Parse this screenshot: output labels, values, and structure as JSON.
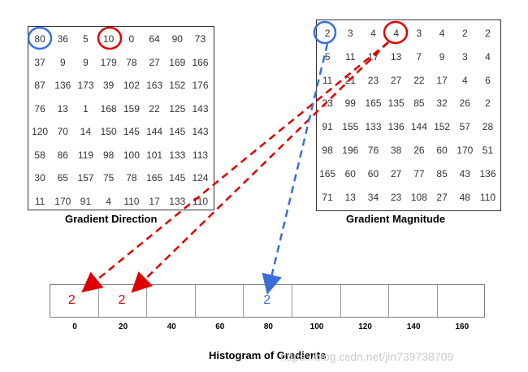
{
  "direction_grid": {
    "title": "Gradient Direction",
    "rows": [
      [
        "80",
        "36",
        "5",
        "10",
        "0",
        "64",
        "90",
        "73"
      ],
      [
        "37",
        "9",
        "9",
        "179",
        "78",
        "27",
        "169",
        "166"
      ],
      [
        "87",
        "136",
        "173",
        "39",
        "102",
        "163",
        "152",
        "176"
      ],
      [
        "76",
        "13",
        "1",
        "168",
        "159",
        "22",
        "125",
        "143"
      ],
      [
        "120",
        "70",
        "14",
        "150",
        "145",
        "144",
        "145",
        "143"
      ],
      [
        "58",
        "86",
        "119",
        "98",
        "100",
        "101",
        "133",
        "113"
      ],
      [
        "30",
        "65",
        "157",
        "75",
        "78",
        "165",
        "145",
        "124"
      ],
      [
        "11",
        "170",
        "91",
        "4",
        "110",
        "17",
        "133",
        "110"
      ]
    ]
  },
  "magnitude_grid": {
    "title": "Gradient Magnitude",
    "rows": [
      [
        "2",
        "3",
        "4",
        "4",
        "3",
        "4",
        "2",
        "2"
      ],
      [
        "5",
        "11",
        "17",
        "13",
        "7",
        "9",
        "3",
        "4"
      ],
      [
        "11",
        "21",
        "23",
        "27",
        "22",
        "17",
        "4",
        "6"
      ],
      [
        "23",
        "99",
        "165",
        "135",
        "85",
        "32",
        "26",
        "2"
      ],
      [
        "91",
        "155",
        "133",
        "136",
        "144",
        "152",
        "57",
        "28"
      ],
      [
        "98",
        "196",
        "76",
        "38",
        "26",
        "60",
        "170",
        "51"
      ],
      [
        "165",
        "60",
        "60",
        "27",
        "77",
        "85",
        "43",
        "136"
      ],
      [
        "71",
        "13",
        "34",
        "23",
        "108",
        "27",
        "48",
        "110"
      ]
    ]
  },
  "histogram": {
    "title": "Histogram of Gradients",
    "bins": [
      {
        "label": "0",
        "value": "2",
        "color": "#e00000"
      },
      {
        "label": "20",
        "value": "2",
        "color": "#e00000"
      },
      {
        "label": "40",
        "value": ""
      },
      {
        "label": "60",
        "value": ""
      },
      {
        "label": "80",
        "value": "2",
        "color": "#3a6fd8"
      },
      {
        "label": "100",
        "value": ""
      },
      {
        "label": "120",
        "value": ""
      },
      {
        "label": "140",
        "value": ""
      },
      {
        "label": "160",
        "value": ""
      }
    ]
  },
  "colors": {
    "red": "#e00000",
    "blue": "#3a6fd8"
  },
  "watermark": "https://blog.csdn.net/jin739738709"
}
